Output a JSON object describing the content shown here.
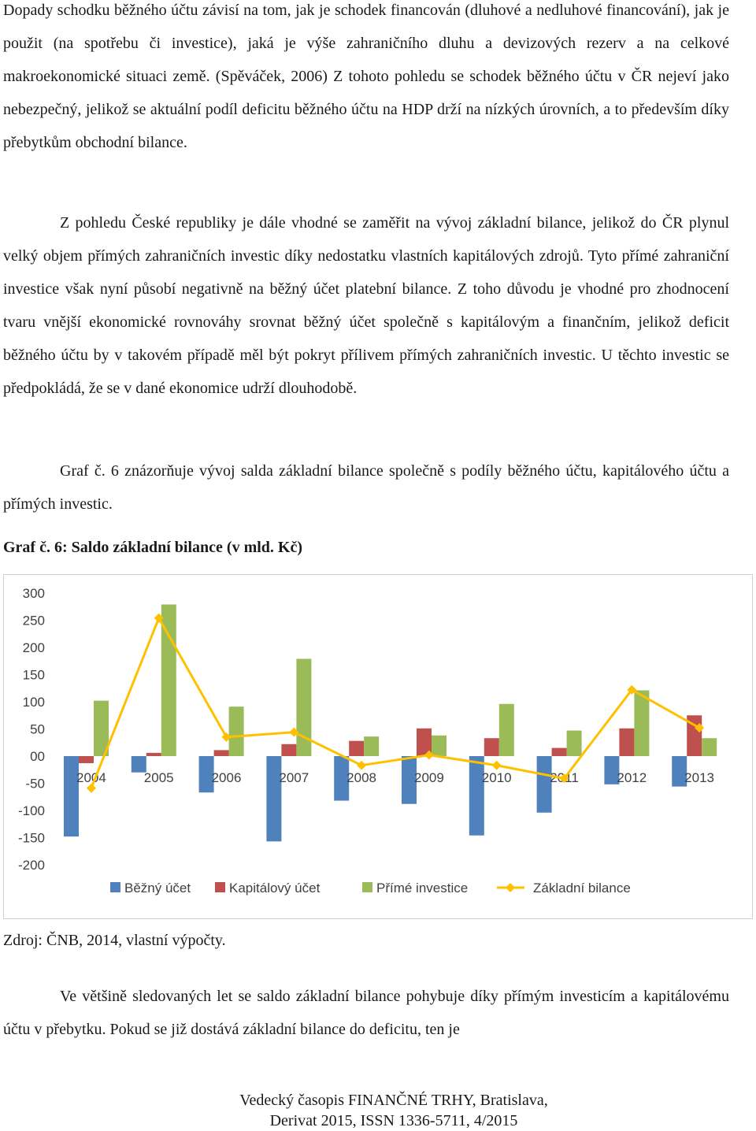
{
  "document": {
    "paragraph_1": "Dopady schodku běžného účtu závisí na tom, jak je schodek financován (dluhové a nedluhové financování), jak je použit (na spotřebu či investice), jaká je výše zahraničního dluhu a devizových rezerv a na celkové makroekonomické situaci země. (Spěváček, 2006) Z tohoto pohledu se schodek běžného účtu v ČR nejeví jako nebezpečný, jelikož se aktuální podíl deficitu běžného účtu na HDP drží na nízkých úrovních, a to především díky přebytkům obchodní bilance.",
    "paragraph_2": "Z pohledu České republiky je dále vhodné se zaměřit na vývoj základní bilance, jelikož do ČR plynul velký objem přímých zahraničních investic díky nedostatku vlastních kapitálových zdrojů. Tyto přímé zahraniční investice však nyní působí negativně na běžný účet platební bilance. Z toho důvodu je vhodné pro zhodnocení tvaru vnější ekonomické rovnováhy srovnat běžný účet společně s kapitálovým a finančním, jelikož deficit běžného účtu by v takovém případě měl být pokryt přílivem přímých zahraničních investic. U těchto investic se předpokládá, že se v dané ekonomice udrží dlouhodobě.",
    "paragraph_3": "Graf č. 6 znázorňuje vývoj salda základní bilance společně s podíly běžného účtu, kapitálového účtu a přímých investic.",
    "figure_caption": "Graf č. 6: Saldo základní bilance (v mld. Kč)",
    "source_note": "Zdroj: ČNB, 2014, vlastní výpočty.",
    "paragraph_4": "Ve většině sledovaných let se saldo základní bilance pohybuje díky přímým investicím a kapitálovému účtu v přebytku. Pokud se již dostává základní bilance do deficitu, ten je",
    "footer_line_1": "Vedecký časopis FINANČNÉ TRHY, Bratislava,",
    "footer_line_2": "Derivat 2015, ISSN 1336-5711, 4/2015"
  },
  "chart_data": {
    "type": "bar",
    "title": "",
    "xlabel": "",
    "ylabel": "",
    "ylim": [
      -200,
      300
    ],
    "y_ticks": [
      "300",
      "250",
      "200",
      "150",
      "100",
      "50",
      "00",
      "-50",
      "-100",
      "-150",
      "-200"
    ],
    "categories": [
      "2004",
      "2005",
      "2006",
      "2007",
      "2008",
      "2009",
      "2010",
      "2011",
      "2012",
      "2013"
    ],
    "series": [
      {
        "name": "Běžný účet",
        "kind": "bar",
        "color": "#4f81bd",
        "values": [
          -148,
          -30,
          -67,
          -157,
          -82,
          -88,
          -146,
          -104,
          -52,
          -56
        ]
      },
      {
        "name": "Kapitálový účet",
        "kind": "bar",
        "color": "#c0504d",
        "values": [
          -13,
          6,
          11,
          22,
          28,
          51,
          33,
          15,
          51,
          75
        ]
      },
      {
        "name": "Přímé investice",
        "kind": "bar",
        "color": "#9bbb59",
        "values": [
          102,
          279,
          91,
          179,
          36,
          38,
          96,
          47,
          121,
          33
        ]
      },
      {
        "name": "Základní bilance",
        "kind": "line",
        "color": "#ffc000",
        "values": [
          -59,
          254,
          35,
          44,
          -17,
          2,
          -17,
          -41,
          122,
          52
        ]
      }
    ],
    "legend_position": "bottom",
    "grid": false
  }
}
